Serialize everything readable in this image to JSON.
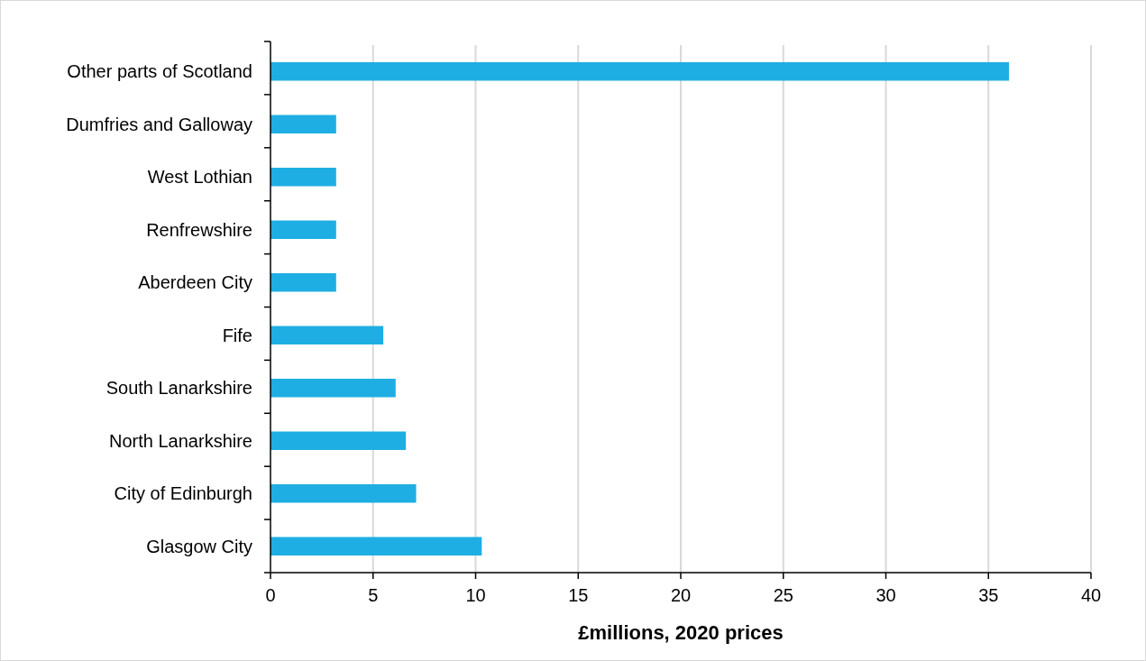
{
  "chart_data": {
    "type": "bar",
    "orientation": "horizontal",
    "xlabel": "£millions, 2020 prices",
    "categories": [
      "Other parts of Scotland",
      "Dumfries and Galloway",
      "West Lothian",
      "Renfrewshire",
      "Aberdeen City",
      "Fife",
      "South Lanarkshire",
      "North Lanarkshire",
      "City of Edinburgh",
      "Glasgow City"
    ],
    "values": [
      36.0,
      3.2,
      3.2,
      3.2,
      3.2,
      5.5,
      6.1,
      6.6,
      7.1,
      10.3
    ],
    "color": "#1eaee3",
    "xlim": [
      0,
      40
    ],
    "xticks": [
      0,
      5,
      10,
      15,
      20,
      25,
      30,
      35,
      40
    ],
    "grid": "x"
  }
}
